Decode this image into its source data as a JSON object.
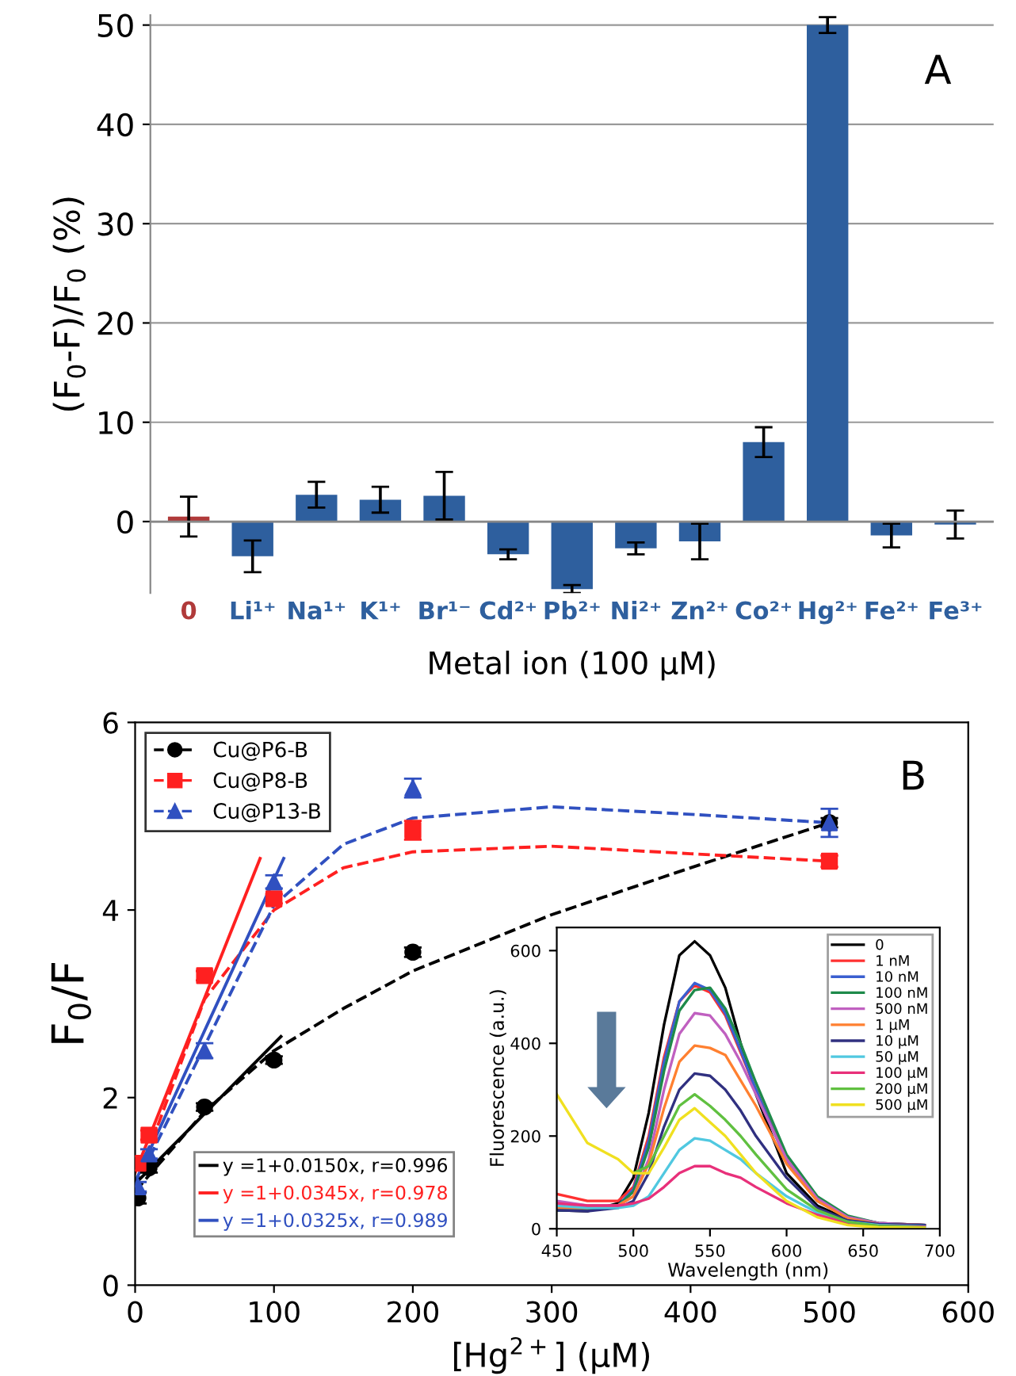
{
  "chart_data": [
    {
      "type": "bar",
      "xlabel": "Metal ion (100 μM)",
      "ylabel": "(F$_{0}$-F)/F$_{0}$ (%)",
      "annotations": [
        "A"
      ],
      "categories": [
        "0",
        "Li¹⁺",
        "Na¹⁺",
        "K¹⁺",
        "Br¹⁻",
        "Cd²⁺",
        "Pb²⁺",
        "Ni²⁺",
        "Zn²⁺",
        "Co²⁺",
        "Hg²⁺",
        "Fe²⁺",
        "Fe³⁺"
      ],
      "values": [
        0.5,
        -3.5,
        2.7,
        2.2,
        2.6,
        -3.3,
        -6.8,
        -2.7,
        -2.0,
        8.0,
        50.0,
        -1.4,
        -0.3
      ],
      "errors": [
        2.0,
        1.6,
        1.3,
        1.3,
        2.4,
        0.5,
        0.4,
        0.6,
        1.8,
        1.5,
        0.8,
        1.2,
        1.4
      ],
      "colors": [
        "#b03a3a",
        "#2e5f9e",
        "#2e5f9e",
        "#2e5f9e",
        "#2e5f9e",
        "#2e5f9e",
        "#2e5f9e",
        "#2e5f9e",
        "#2e5f9e",
        "#2e5f9e",
        "#2e5f9e",
        "#2e5f9e",
        "#2e5f9e"
      ],
      "ylim": [
        -7.2,
        51
      ],
      "yticks": [
        0,
        10,
        20,
        30,
        40,
        50
      ],
      "grid": "y",
      "legend": false
    },
    {
      "type": "scatter",
      "xlabel": "[Hg$^{2+}$] (μM)",
      "ylabel": "F$_{0}$/F",
      "annotations": [
        "B"
      ],
      "xlim": [
        0,
        600
      ],
      "ylim": [
        0,
        6
      ],
      "xticks": [
        0,
        100,
        200,
        300,
        400,
        500,
        600
      ],
      "yticks": [
        0,
        2,
        4,
        6
      ],
      "grid": false,
      "legend": "top left",
      "series": [
        {
          "type": "line",
          "color": "#000000",
          "line_style": "dashed",
          "x": [
            0,
            50,
            100,
            150,
            200,
            300,
            400,
            500
          ],
          "values": [
            1.0,
            1.85,
            2.5,
            2.95,
            3.35,
            3.95,
            4.45,
            4.93
          ]
        },
        {
          "type": "line",
          "color": "#ff2020",
          "line_style": "dashed",
          "x": [
            0,
            50,
            100,
            150,
            200,
            300,
            400,
            500
          ],
          "values": [
            1.05,
            3.05,
            4.0,
            4.45,
            4.62,
            4.68,
            4.6,
            4.52
          ]
        },
        {
          "type": "line",
          "color": "#3050c0",
          "line_style": "dashed",
          "x": [
            0,
            50,
            100,
            150,
            200,
            300,
            400,
            500
          ],
          "values": [
            1.05,
            2.55,
            4.05,
            4.7,
            4.98,
            5.1,
            5.02,
            4.93
          ]
        },
        {
          "type": "line",
          "name": "y =1+0.0150x, r=0.996",
          "color": "#000000",
          "line_style": "solid",
          "x": [
            0,
            105
          ],
          "values": [
            1.08,
            2.65
          ]
        },
        {
          "type": "line",
          "name": "y =1+0.0345x, r=0.978",
          "color": "#ff2020",
          "line_style": "solid",
          "x": [
            0,
            90
          ],
          "values": [
            1.2,
            4.55
          ]
        },
        {
          "type": "line",
          "name": "y =1+0.0325x, r=0.989",
          "color": "#3050c0",
          "line_style": "solid",
          "x": [
            0,
            107
          ],
          "values": [
            1.1,
            4.55
          ]
        },
        {
          "type": "scatter",
          "name": "Cu@P6-B",
          "color": "#000000",
          "marker": "circle",
          "line_style": "dashed",
          "x": [
            2,
            10,
            50,
            100,
            200,
            500
          ],
          "values": [
            0.93,
            1.25,
            1.9,
            2.4,
            3.55,
            4.93
          ],
          "errors": [
            0.06,
            0.05,
            0.04,
            0.04,
            0.05,
            0.05
          ]
        },
        {
          "type": "scatter",
          "name": "Cu@P8-B",
          "color": "#ff2020",
          "marker": "square",
          "line_style": "dashed",
          "x": [
            2,
            10,
            50,
            100,
            200,
            500
          ],
          "values": [
            1.3,
            1.6,
            3.3,
            4.12,
            4.85,
            4.52
          ],
          "errors": [
            0.05,
            0.05,
            0.05,
            0.05,
            0.1,
            0.06
          ]
        },
        {
          "type": "scatter",
          "name": "Cu@P13-B",
          "color": "#3050c0",
          "marker": "triangle",
          "line_style": "dashed",
          "x": [
            2,
            10,
            50,
            100,
            200,
            500
          ],
          "values": [
            1.05,
            1.4,
            2.5,
            4.3,
            5.3,
            4.93
          ],
          "errors": [
            0.05,
            0.05,
            0.08,
            0.07,
            0.1,
            0.15
          ]
        }
      ]
    },
    {
      "type": "line",
      "xlabel": "Wavelength (nm)",
      "ylabel": "Fluorescence (a.u.)",
      "xlim": [
        450,
        700
      ],
      "ylim": [
        0,
        650
      ],
      "xticks": [
        450,
        500,
        550,
        600,
        650,
        700
      ],
      "yticks": [
        0,
        200,
        400,
        600
      ],
      "grid": false,
      "legend": "top right",
      "x": [
        450,
        470,
        490,
        500,
        510,
        520,
        530,
        540,
        550,
        560,
        570,
        580,
        600,
        620,
        640,
        660,
        690
      ],
      "series": [
        {
          "name": "0",
          "color": "#000000",
          "values": [
            40,
            38,
            55,
            110,
            250,
            440,
            590,
            620,
            590,
            520,
            400,
            290,
            120,
            50,
            20,
            10,
            8
          ]
        },
        {
          "name": "1 nM",
          "color": "#ff3030",
          "values": [
            75,
            60,
            60,
            90,
            200,
            370,
            490,
            525,
            510,
            460,
            380,
            300,
            150,
            65,
            25,
            12,
            8
          ]
        },
        {
          "name": "10 nM",
          "color": "#3a5fd0",
          "values": [
            40,
            40,
            50,
            85,
            190,
            360,
            490,
            530,
            515,
            465,
            385,
            300,
            145,
            60,
            25,
            12,
            8
          ]
        },
        {
          "name": "100 nM",
          "color": "#1e8a4a",
          "values": [
            40,
            40,
            50,
            80,
            175,
            340,
            470,
            515,
            520,
            475,
            400,
            315,
            160,
            70,
            28,
            12,
            8
          ]
        },
        {
          "name": "500 nM",
          "color": "#c060c0",
          "values": [
            60,
            50,
            50,
            70,
            150,
            300,
            420,
            465,
            460,
            420,
            360,
            290,
            150,
            65,
            25,
            12,
            8
          ]
        },
        {
          "name": "1 μM",
          "color": "#ff8030",
          "values": [
            45,
            45,
            50,
            70,
            140,
            260,
            360,
            395,
            390,
            375,
            320,
            265,
            140,
            60,
            22,
            10,
            8
          ]
        },
        {
          "name": "10 μM",
          "color": "#303080",
          "values": [
            40,
            38,
            45,
            60,
            120,
            220,
            300,
            335,
            330,
            300,
            255,
            200,
            110,
            45,
            18,
            10,
            8
          ]
        },
        {
          "name": "50 μM",
          "color": "#50c8e0",
          "values": [
            50,
            45,
            45,
            50,
            70,
            120,
            170,
            195,
            190,
            170,
            150,
            120,
            70,
            35,
            15,
            8,
            5
          ]
        },
        {
          "name": "100 μM",
          "color": "#e8307a",
          "values": [
            55,
            50,
            50,
            55,
            65,
            90,
            120,
            135,
            135,
            120,
            110,
            90,
            55,
            30,
            12,
            6,
            4
          ]
        },
        {
          "name": "200 μM",
          "color": "#60c040",
          "values": [
            null,
            null,
            null,
            120,
            135,
            200,
            265,
            290,
            265,
            235,
            200,
            160,
            85,
            40,
            15,
            6,
            3
          ]
        },
        {
          "name": "500 μM",
          "color": "#f0e020",
          "values": [
            290,
            185,
            150,
            120,
            120,
            175,
            235,
            260,
            230,
            200,
            160,
            120,
            60,
            25,
            8,
            3,
            2
          ]
        }
      ]
    }
  ]
}
